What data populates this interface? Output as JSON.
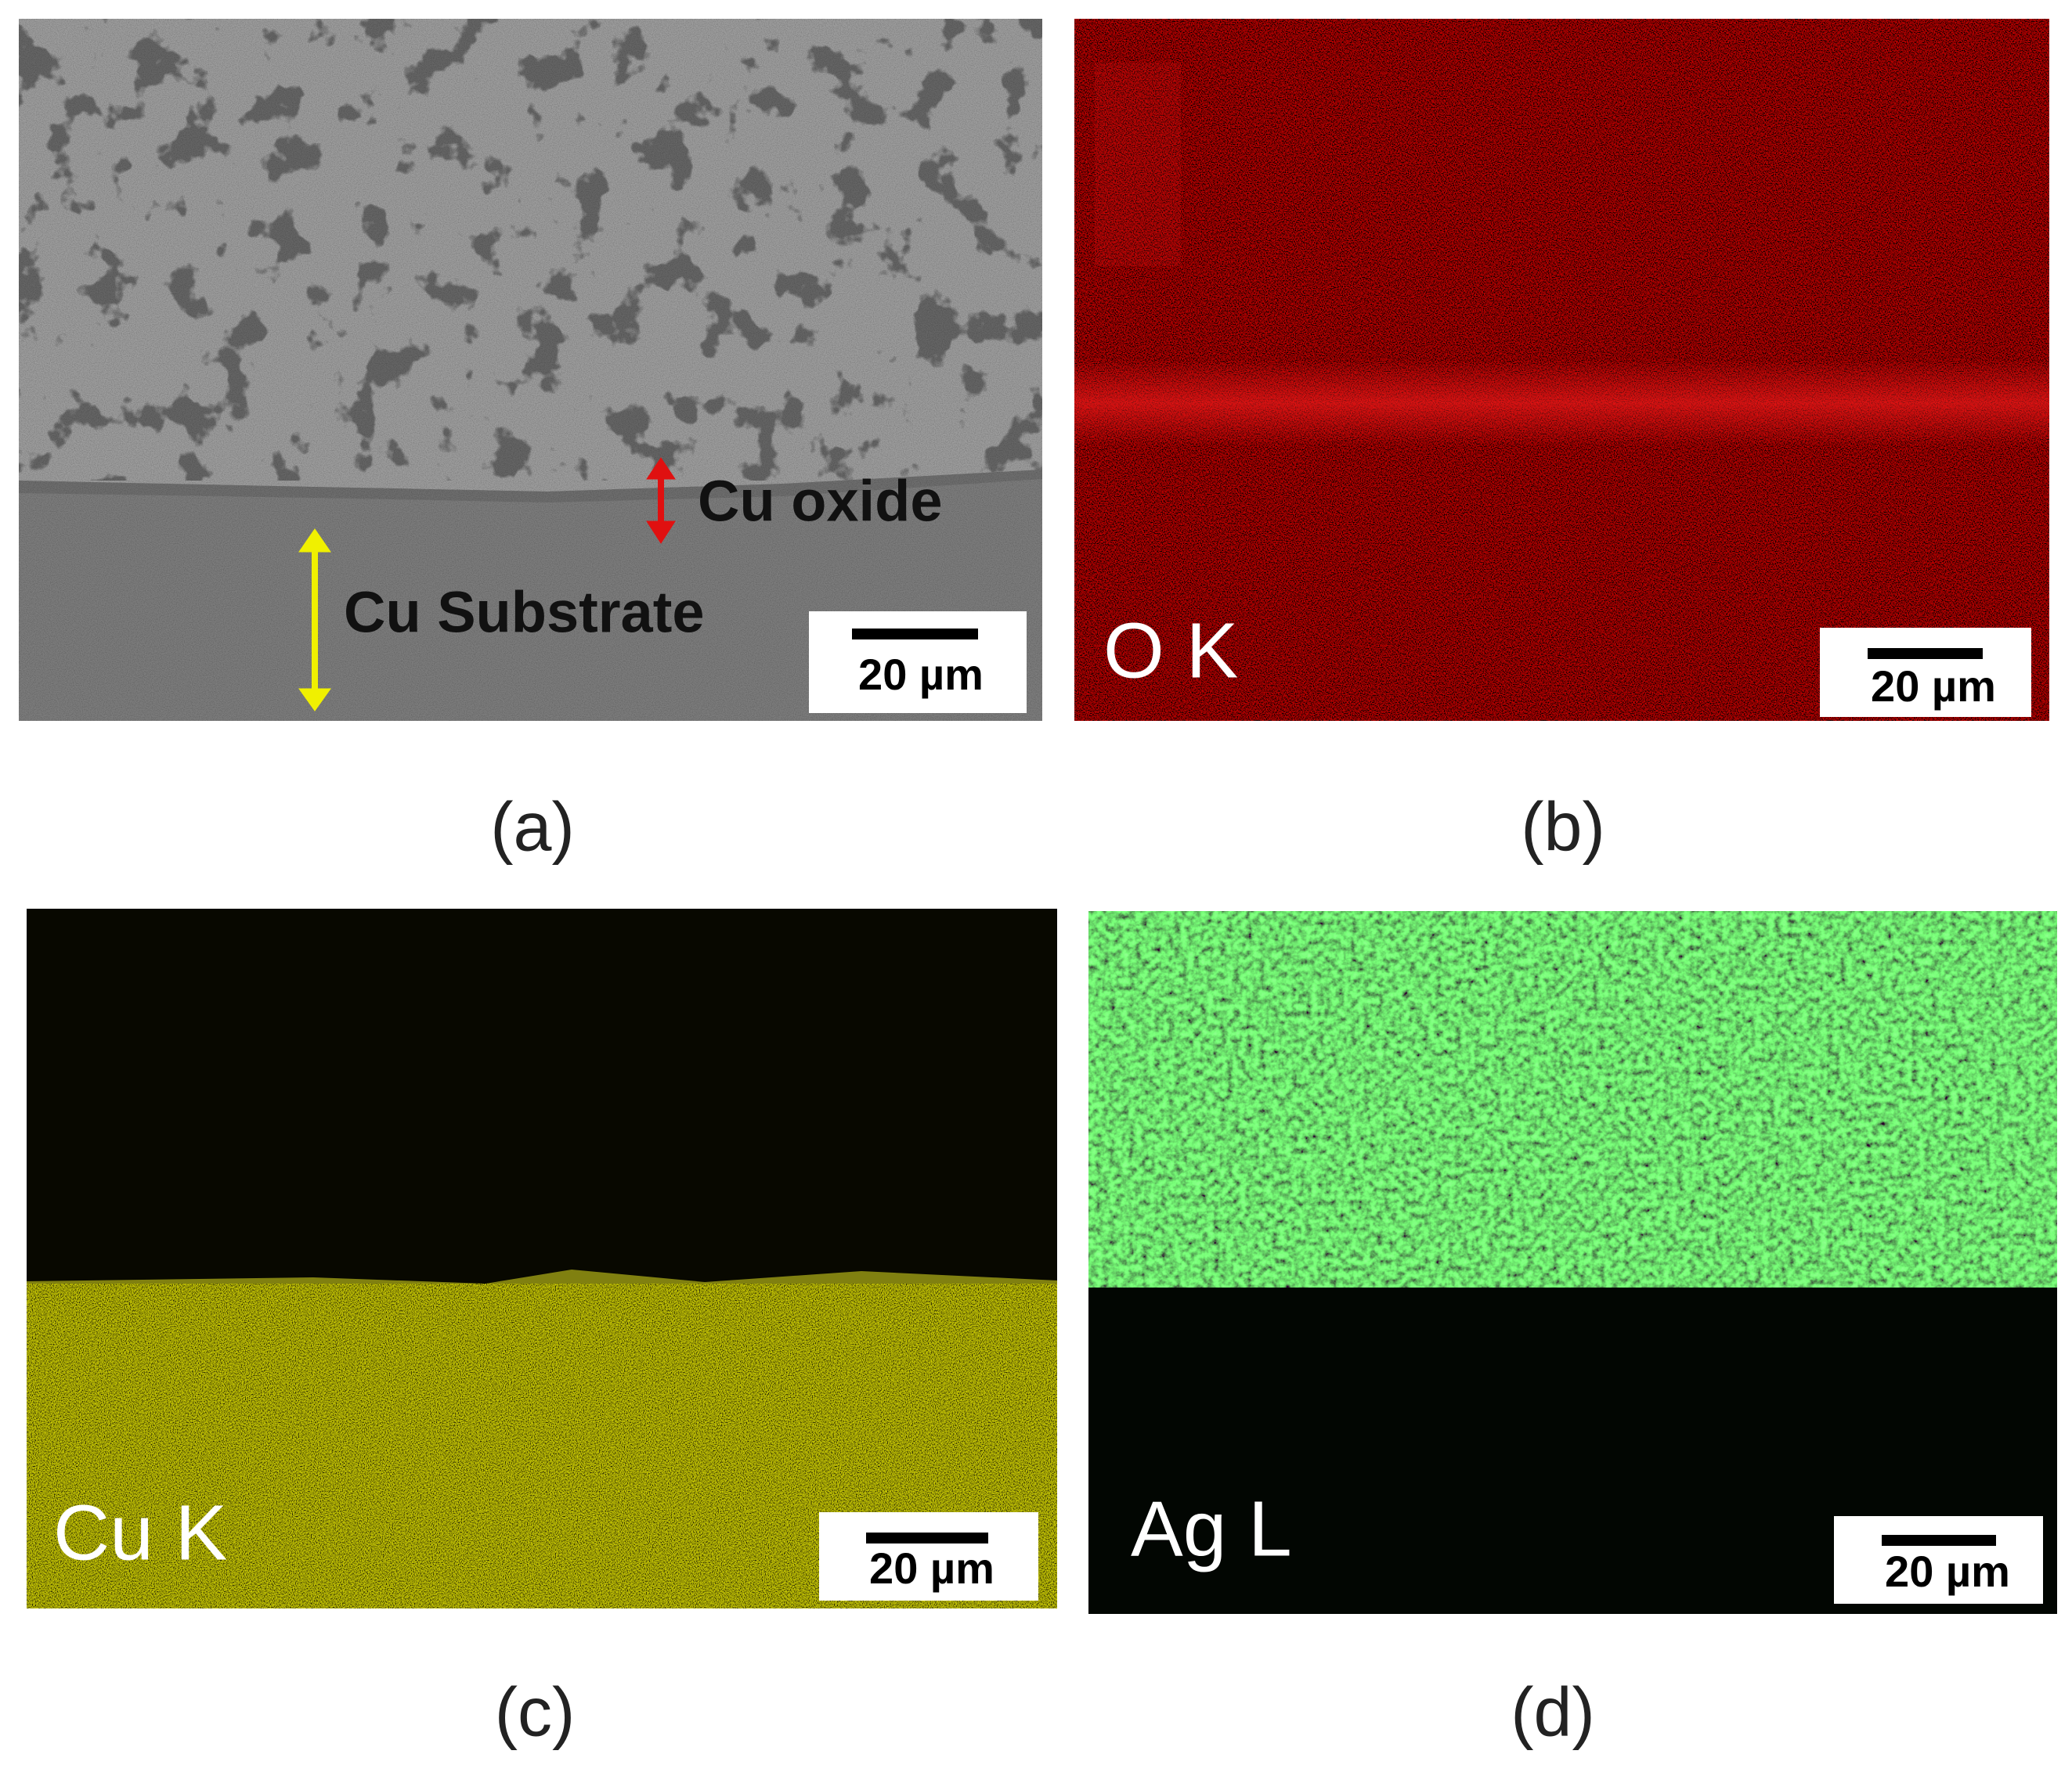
{
  "panels": [
    {
      "caption": "(a)",
      "annotations": [
        "Cu oxide",
        "Cu Substrate"
      ],
      "scale_bar": "20 µm"
    },
    {
      "caption": "(b)",
      "element_label": "O K",
      "scale_bar": "20 µm"
    },
    {
      "caption": "(c)",
      "element_label": "Cu K",
      "scale_bar": "20 µm"
    },
    {
      "caption": "(d)",
      "element_label": "Ag L",
      "scale_bar": "20 µm"
    }
  ]
}
